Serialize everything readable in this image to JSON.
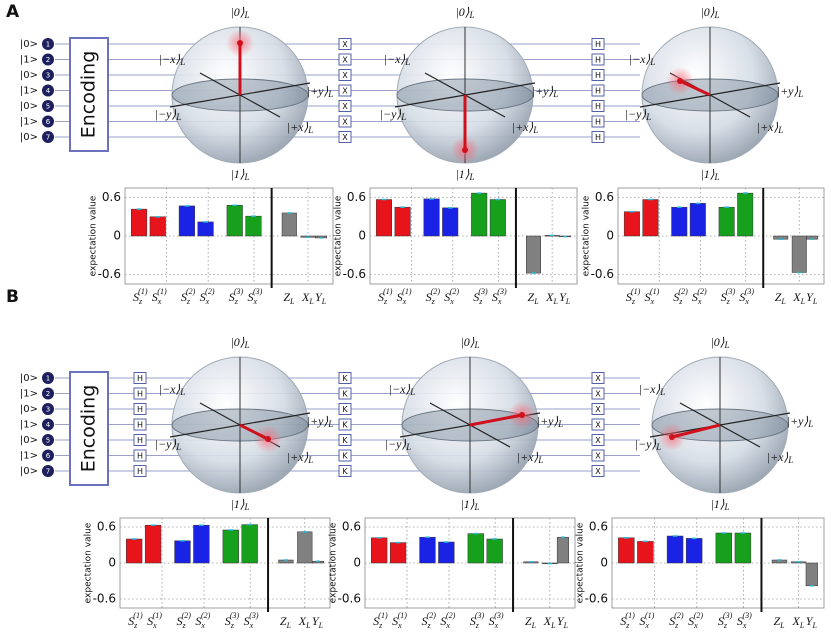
{
  "panels": [
    {
      "letter": "A",
      "inputs": [
        "|0>",
        "|1>",
        "|0>",
        "|1>",
        "|0>",
        "|1>",
        "|0>"
      ],
      "qubits": [
        "1",
        "2",
        "3",
        "4",
        "5",
        "6",
        "7"
      ],
      "encoding": "Encoding",
      "gates": [
        "X",
        "H"
      ]
    },
    {
      "letter": "B",
      "inputs": [
        "|0>",
        "|1>",
        "|0>",
        "|1>",
        "|0>",
        "|1>",
        "|0>"
      ],
      "qubits": [
        "1",
        "2",
        "3",
        "4",
        "5",
        "6",
        "7"
      ],
      "encoding": "Encoding",
      "gates": [
        "H",
        "K",
        "X"
      ]
    }
  ],
  "sphere_labels": {
    "top": "|0⟩",
    "bottom": "|1⟩",
    "minus_x": "|−x⟩",
    "plus_y": "|+y⟩",
    "minus_y": "|−y⟩",
    "plus_x": "|+x⟩",
    "sub": "L"
  },
  "chart_data": [
    {
      "type": "bar",
      "ylabel": "expectation value",
      "categories": [
        {
          "base": "S",
          "sub": "z",
          "sup": "(1)"
        },
        {
          "base": "S",
          "sub": "x",
          "sup": "(1)"
        },
        {
          "base": "S",
          "sub": "z",
          "sup": "(2)"
        },
        {
          "base": "S",
          "sub": "x",
          "sup": "(2)"
        },
        {
          "base": "S",
          "sub": "z",
          "sup": "(3)"
        },
        {
          "base": "S",
          "sub": "x",
          "sup": "(3)"
        },
        {
          "base": "Z",
          "sub": "L"
        },
        {
          "base": "X",
          "sub": "L"
        },
        {
          "base": "Y",
          "sub": "L"
        }
      ],
      "values": [
        0.42,
        0.3,
        0.47,
        0.22,
        0.48,
        0.31,
        0.36,
        -0.02,
        -0.03
      ],
      "colors": [
        "#e8141c",
        "#e8141c",
        "#1a22e6",
        "#1a22e6",
        "#16a01c",
        "#16a01c",
        "#808080",
        "#808080",
        "#808080"
      ],
      "ylim": [
        -0.75,
        0.75
      ],
      "yticks": [
        -0.6,
        0,
        0.6
      ],
      "grid": true
    },
    {
      "type": "bar",
      "ylabel": "expectation value",
      "categories": [
        {
          "base": "S",
          "sub": "z",
          "sup": "(1)"
        },
        {
          "base": "S",
          "sub": "x",
          "sup": "(1)"
        },
        {
          "base": "S",
          "sub": "z",
          "sup": "(2)"
        },
        {
          "base": "S",
          "sub": "x",
          "sup": "(2)"
        },
        {
          "base": "S",
          "sub": "z",
          "sup": "(3)"
        },
        {
          "base": "S",
          "sub": "x",
          "sup": "(3)"
        },
        {
          "base": "Z",
          "sub": "L"
        },
        {
          "base": "X",
          "sub": "L"
        },
        {
          "base": "Y",
          "sub": "L"
        }
      ],
      "values": [
        0.57,
        0.45,
        0.58,
        0.44,
        0.67,
        0.57,
        -0.58,
        0.01,
        -0.01
      ],
      "colors": [
        "#e8141c",
        "#e8141c",
        "#1a22e6",
        "#1a22e6",
        "#16a01c",
        "#16a01c",
        "#808080",
        "#808080",
        "#808080"
      ],
      "ylim": [
        -0.75,
        0.75
      ],
      "yticks": [
        -0.6,
        0,
        0.6
      ],
      "grid": true
    },
    {
      "type": "bar",
      "ylabel": "expectation value",
      "categories": [
        {
          "base": "S",
          "sub": "z",
          "sup": "(1)"
        },
        {
          "base": "S",
          "sub": "x",
          "sup": "(1)"
        },
        {
          "base": "S",
          "sub": "z",
          "sup": "(2)"
        },
        {
          "base": "S",
          "sub": "x",
          "sup": "(2)"
        },
        {
          "base": "S",
          "sub": "z",
          "sup": "(3)"
        },
        {
          "base": "S",
          "sub": "x",
          "sup": "(3)"
        },
        {
          "base": "Z",
          "sub": "L"
        },
        {
          "base": "X",
          "sub": "L"
        },
        {
          "base": "Y",
          "sub": "L"
        }
      ],
      "values": [
        0.38,
        0.57,
        0.45,
        0.51,
        0.45,
        0.67,
        -0.05,
        -0.57,
        -0.05
      ],
      "colors": [
        "#e8141c",
        "#e8141c",
        "#1a22e6",
        "#1a22e6",
        "#16a01c",
        "#16a01c",
        "#808080",
        "#808080",
        "#808080"
      ],
      "ylim": [
        -0.75,
        0.75
      ],
      "yticks": [
        -0.6,
        0,
        0.6
      ],
      "grid": true
    },
    {
      "type": "bar",
      "ylabel": "expectation value",
      "categories": [
        {
          "base": "S",
          "sub": "z",
          "sup": "(1)"
        },
        {
          "base": "S",
          "sub": "x",
          "sup": "(1)"
        },
        {
          "base": "S",
          "sub": "z",
          "sup": "(2)"
        },
        {
          "base": "S",
          "sub": "x",
          "sup": "(2)"
        },
        {
          "base": "S",
          "sub": "z",
          "sup": "(3)"
        },
        {
          "base": "S",
          "sub": "x",
          "sup": "(3)"
        },
        {
          "base": "Z",
          "sub": "L"
        },
        {
          "base": "X",
          "sub": "L"
        },
        {
          "base": "Y",
          "sub": "L"
        }
      ],
      "values": [
        0.4,
        0.63,
        0.37,
        0.63,
        0.55,
        0.64,
        0.05,
        0.52,
        0.03
      ],
      "colors": [
        "#e8141c",
        "#e8141c",
        "#1a22e6",
        "#1a22e6",
        "#16a01c",
        "#16a01c",
        "#808080",
        "#808080",
        "#808080"
      ],
      "ylim": [
        -0.75,
        0.75
      ],
      "yticks": [
        -0.6,
        0,
        0.6
      ],
      "grid": true
    },
    {
      "type": "bar",
      "ylabel": "expectation value",
      "categories": [
        {
          "base": "S",
          "sub": "z",
          "sup": "(1)"
        },
        {
          "base": "S",
          "sub": "x",
          "sup": "(1)"
        },
        {
          "base": "S",
          "sub": "z",
          "sup": "(2)"
        },
        {
          "base": "S",
          "sub": "x",
          "sup": "(2)"
        },
        {
          "base": "S",
          "sub": "z",
          "sup": "(3)"
        },
        {
          "base": "S",
          "sub": "x",
          "sup": "(3)"
        },
        {
          "base": "Z",
          "sub": "L"
        },
        {
          "base": "X",
          "sub": "L"
        },
        {
          "base": "Y",
          "sub": "L"
        }
      ],
      "values": [
        0.42,
        0.34,
        0.43,
        0.35,
        0.49,
        0.4,
        0.02,
        -0.01,
        0.43
      ],
      "colors": [
        "#e8141c",
        "#e8141c",
        "#1a22e6",
        "#1a22e6",
        "#16a01c",
        "#16a01c",
        "#808080",
        "#808080",
        "#808080"
      ],
      "ylim": [
        -0.75,
        0.75
      ],
      "yticks": [
        -0.6,
        0,
        0.6
      ],
      "grid": true
    },
    {
      "type": "bar",
      "ylabel": "expectation value",
      "categories": [
        {
          "base": "S",
          "sub": "z",
          "sup": "(1)"
        },
        {
          "base": "S",
          "sub": "x",
          "sup": "(1)"
        },
        {
          "base": "S",
          "sub": "z",
          "sup": "(2)"
        },
        {
          "base": "S",
          "sub": "x",
          "sup": "(2)"
        },
        {
          "base": "S",
          "sub": "z",
          "sup": "(3)"
        },
        {
          "base": "S",
          "sub": "x",
          "sup": "(3)"
        },
        {
          "base": "Z",
          "sub": "L"
        },
        {
          "base": "X",
          "sub": "L"
        },
        {
          "base": "Y",
          "sub": "L"
        }
      ],
      "values": [
        0.42,
        0.36,
        0.45,
        0.41,
        0.5,
        0.5,
        0.05,
        0.02,
        -0.38
      ],
      "colors": [
        "#e8141c",
        "#e8141c",
        "#1a22e6",
        "#1a22e6",
        "#16a01c",
        "#16a01c",
        "#808080",
        "#808080",
        "#808080"
      ],
      "ylim": [
        -0.75,
        0.75
      ],
      "yticks": [
        -0.6,
        0,
        0.6
      ],
      "grid": true
    }
  ]
}
